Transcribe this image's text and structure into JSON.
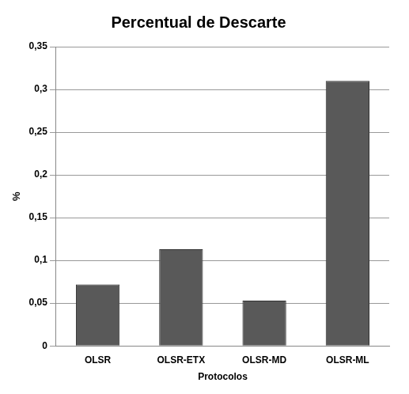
{
  "chart_data": {
    "type": "bar",
    "title": "Percentual de Descarte",
    "x_label": "Protocolos",
    "y_label": "%",
    "categories": [
      "OLSR",
      "OLSR-ETX",
      "OLSR-MD",
      "OLSR-ML"
    ],
    "values": [
      0.072,
      0.113,
      0.053,
      0.31
    ],
    "color": "#595959",
    "ylim": [
      0,
      0.35
    ],
    "yticks": [
      0,
      {
        "value": 0.05,
        "label": "0,05"
      },
      {
        "value": 0.1,
        "label": "0,1"
      },
      {
        "value": 0.15,
        "label": "0,15"
      },
      {
        "value": 0.2,
        "label": "0,2"
      },
      {
        "value": 0.25,
        "label": "0,25"
      },
      {
        "value": 0.3,
        "label": "0,3"
      },
      {
        "value": 0.35,
        "label": "0,35"
      }
    ],
    "grid": true
  }
}
